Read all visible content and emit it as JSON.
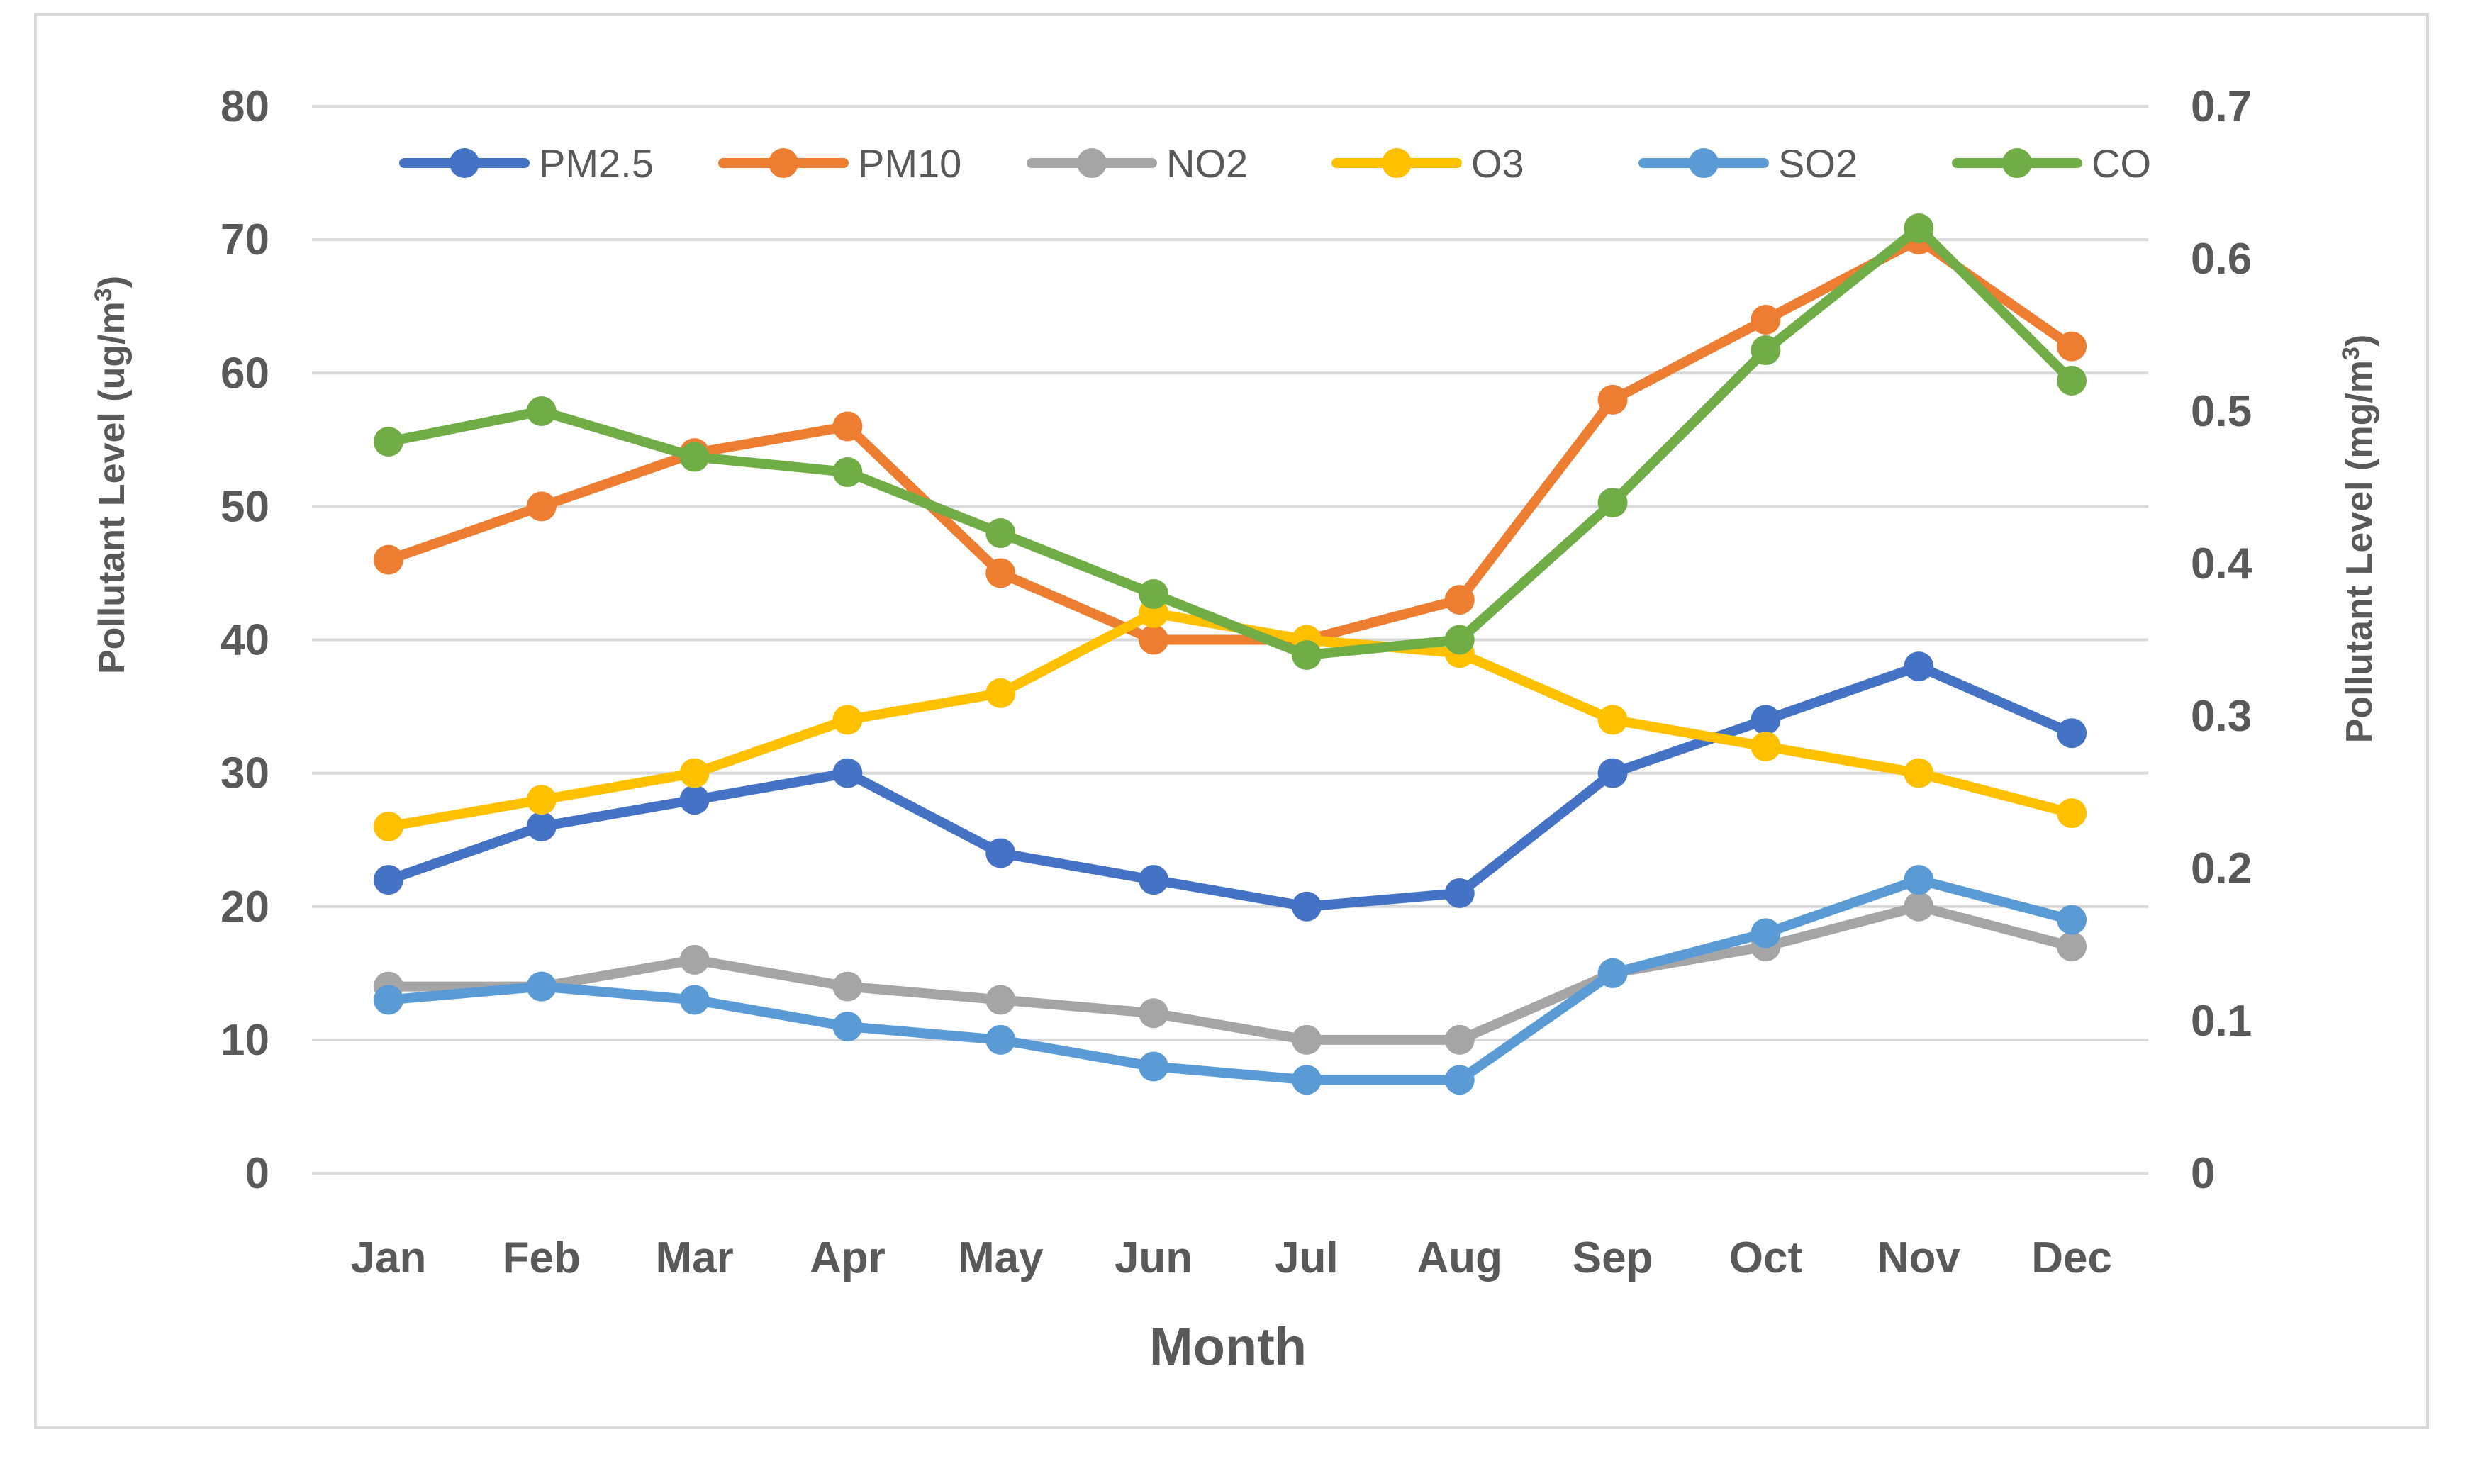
{
  "chart_data": {
    "type": "line",
    "categories": [
      "Jan",
      "Feb",
      "Mar",
      "Apr",
      "May",
      "Jun",
      "Jul",
      "Aug",
      "Sep",
      "Oct",
      "Nov",
      "Dec"
    ],
    "xlabel": "Month",
    "ylabel_left": "Pollutant Level (ug/m",
    "ylabel_right": "Pollutant Level (mg/m",
    "ylabel_sup": "3",
    "ylabel_close": ")",
    "ylim_left": [
      0,
      80
    ],
    "ylim_right": [
      0,
      0.7
    ],
    "left_ticks": [
      "0",
      "10",
      "20",
      "30",
      "40",
      "50",
      "60",
      "70",
      "80"
    ],
    "right_ticks": [
      "0",
      "0.1",
      "0.2",
      "0.3",
      "0.4",
      "0.5",
      "0.6",
      "0.7"
    ],
    "grid": true,
    "legend_position": "top",
    "series": [
      {
        "name": "PM2.5",
        "color": "#4472c4",
        "axis": "left",
        "values": [
          22,
          26,
          28,
          30,
          24,
          22,
          20,
          21,
          30,
          34,
          38,
          33
        ]
      },
      {
        "name": "PM10",
        "color": "#ed7d31",
        "axis": "left",
        "values": [
          46,
          50,
          54,
          56,
          45,
          40,
          40,
          43,
          58,
          64,
          70,
          62
        ]
      },
      {
        "name": "NO2",
        "color": "#a5a5a5",
        "axis": "left",
        "values": [
          14,
          14,
          16,
          14,
          13,
          12,
          10,
          10,
          15,
          17,
          20,
          17
        ]
      },
      {
        "name": "O3",
        "color": "#ffc000",
        "axis": "left",
        "values": [
          26,
          28,
          30,
          34,
          36,
          42,
          40,
          39,
          34,
          32,
          30,
          27
        ]
      },
      {
        "name": "SO2",
        "color": "#5b9bd5",
        "axis": "left",
        "values": [
          13,
          14,
          13,
          11,
          10,
          8,
          7,
          7,
          15,
          18,
          22,
          19
        ]
      },
      {
        "name": "CO",
        "color": "#70ad47",
        "axis": "right",
        "values": [
          0.48,
          0.5,
          0.47,
          0.46,
          0.42,
          0.38,
          0.34,
          0.35,
          0.44,
          0.54,
          0.62,
          0.52
        ]
      }
    ]
  }
}
